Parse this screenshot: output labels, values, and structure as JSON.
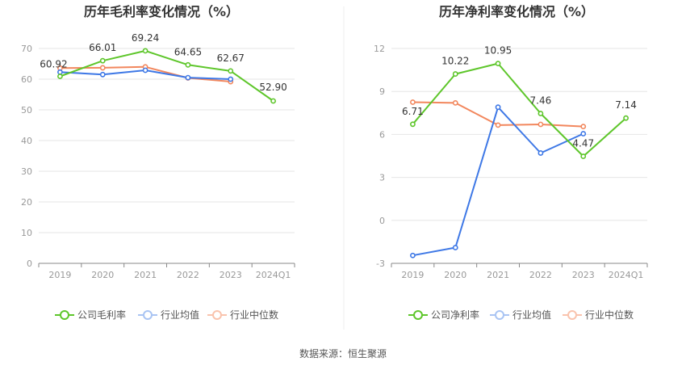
{
  "colors": {
    "company": "#5ec62b",
    "industry_avg": "#3e78e6",
    "industry_median": "#f2875d",
    "grid": "#e6e6e6",
    "axis": "#888888"
  },
  "source": "数据来源：恒生聚源",
  "legend": {
    "gross": [
      "公司毛利率",
      "行业均值",
      "行业中位数"
    ],
    "net": [
      "公司净利率",
      "行业均值",
      "行业中位数"
    ]
  },
  "chart_data": [
    {
      "type": "line",
      "title": "历年毛利率变化情况（%）",
      "categories": [
        "2019",
        "2020",
        "2021",
        "2022",
        "2023",
        "2024Q1"
      ],
      "ylim": [
        0,
        70
      ],
      "yticks": [
        "0",
        "10",
        "20",
        "30",
        "40",
        "50",
        "60",
        "70"
      ],
      "grid": true,
      "legend_position": "bottom",
      "series": [
        {
          "name": "公司毛利率",
          "values": [
            60.92,
            66.01,
            69.24,
            64.65,
            62.67,
            52.9
          ],
          "labels": [
            "60.92",
            "66.01",
            "69.24",
            "64.65",
            "62.67",
            "52.90"
          ]
        },
        {
          "name": "行业均值",
          "values": [
            62.3,
            61.5,
            62.9,
            60.5,
            60.0,
            null
          ]
        },
        {
          "name": "行业中位数",
          "values": [
            63.6,
            63.7,
            64.0,
            60.4,
            59.2,
            null
          ]
        }
      ]
    },
    {
      "type": "line",
      "title": "历年净利率变化情况（%）",
      "categories": [
        "2019",
        "2020",
        "2021",
        "2022",
        "2023",
        "2024Q1"
      ],
      "ylim": [
        -3,
        12
      ],
      "yticks": [
        "-3",
        "0",
        "3",
        "6",
        "9",
        "12"
      ],
      "grid": true,
      "legend_position": "bottom",
      "series": [
        {
          "name": "公司净利率",
          "values": [
            6.71,
            10.22,
            10.95,
            7.46,
            4.47,
            7.14
          ],
          "labels": [
            "6.71",
            "10.22",
            "10.95",
            "7.46",
            "4.47",
            "7.14"
          ]
        },
        {
          "name": "行业均值",
          "values": [
            -2.45,
            -1.9,
            7.9,
            4.7,
            6.05,
            null
          ]
        },
        {
          "name": "行业中位数",
          "values": [
            8.25,
            8.2,
            6.65,
            6.7,
            6.55,
            null
          ]
        }
      ]
    }
  ]
}
